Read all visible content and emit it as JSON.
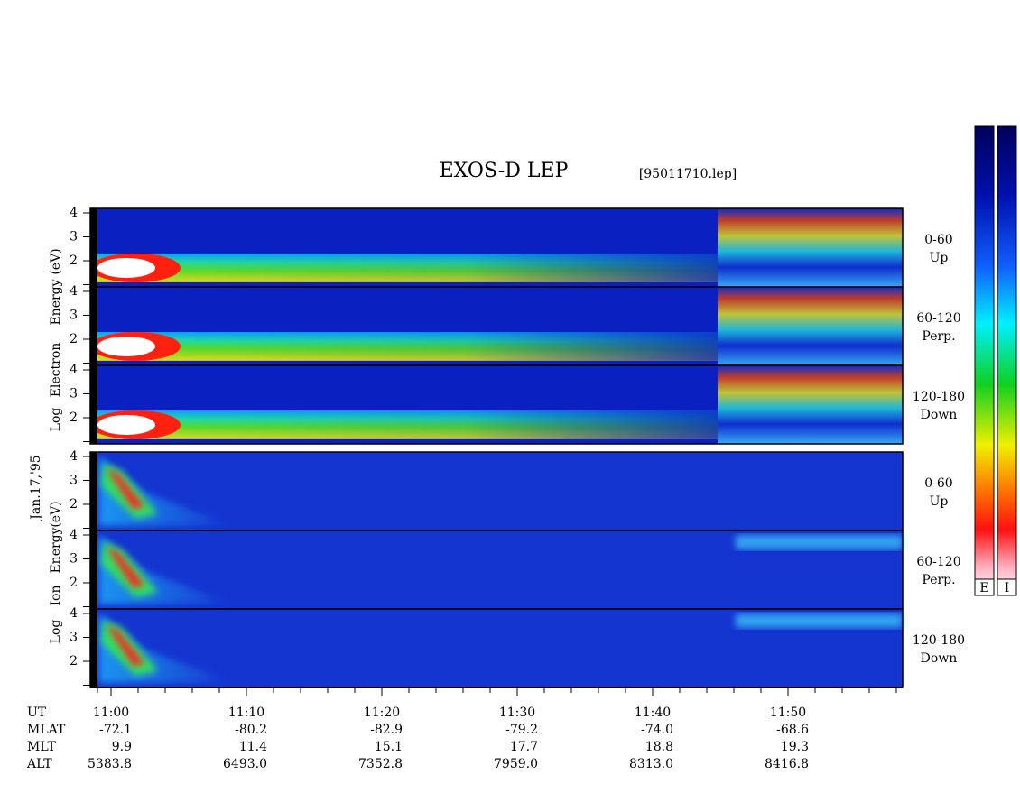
{
  "title": "EXOS-D LEP",
  "file": "[95011710.lep]",
  "date": "Jan.17,'95",
  "yticks": [
    2,
    3,
    4
  ],
  "groups": [
    {
      "axis_words": [
        "Log",
        "Electron",
        "Energy",
        "(eV)"
      ],
      "panels": [
        {
          "angle": "0-60",
          "dir": "Up"
        },
        {
          "angle": "60-120",
          "dir": "Perp."
        },
        {
          "angle": "120-180",
          "dir": "Down"
        }
      ]
    },
    {
      "axis_words": [
        "Log",
        "Ion",
        "Energy",
        "(eV)"
      ],
      "panels": [
        {
          "angle": "0-60",
          "dir": "Up"
        },
        {
          "angle": "60-120",
          "dir": "Perp."
        },
        {
          "angle": "120-180",
          "dir": "Down"
        }
      ]
    }
  ],
  "orbit": [
    {
      "label": "UT",
      "values": [
        "11:00",
        "11:10",
        "11:20",
        "11:30",
        "11:40",
        "11:50"
      ]
    },
    {
      "label": "MLAT",
      "values": [
        "-72.1",
        "-80.2",
        "-82.9",
        "-79.2",
        "-74.0",
        "-68.6"
      ]
    },
    {
      "label": "MLT",
      "values": [
        "9.9",
        "11.4",
        "15.1",
        "17.7",
        "18.8",
        "19.3"
      ]
    },
    {
      "label": "ALT",
      "values": [
        "5383.8",
        "6493.0",
        "7352.8",
        "7959.0",
        "8313.0",
        "8416.8"
      ]
    }
  ],
  "colorbars": [
    "E",
    "I"
  ]
}
